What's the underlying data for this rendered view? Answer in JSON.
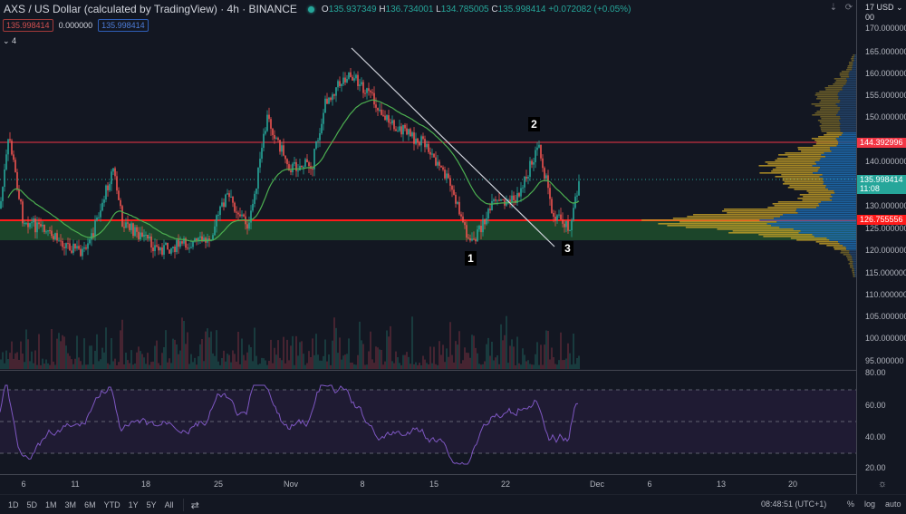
{
  "header": {
    "symbol_title": "AXS / US Dollar (calculated by TradingView) · 4h · BINANCE",
    "ohlc": {
      "o_label": "O",
      "o": "135.937349",
      "h_label": "H",
      "h": "136.734001",
      "l_label": "L",
      "l": "134.785005",
      "c_label": "C",
      "c": "135.998414",
      "change": "+0.072082 (+0.05%)"
    },
    "sell_price": "135.998414",
    "spread": "0.000000",
    "buy_price": "135.998414",
    "indicators_toggle": "⌄ 4",
    "status_color": "#26a69a"
  },
  "price_axis": {
    "currency_selector": "17 USD ⌄ 00",
    "labels": [
      "170.000000",
      "165.000000",
      "160.000000",
      "155.000000",
      "150.000000",
      "140.000000",
      "130.000000",
      "125.000000",
      "120.000000",
      "115.000000",
      "110.000000",
      "105.000000",
      "100.000000",
      "95.000000"
    ],
    "tags": {
      "resistance": "144.392996",
      "current": "135.998414",
      "countdown": "11:08",
      "support": "126.755556"
    },
    "rsi_labels": [
      "80.00",
      "60.00",
      "40.00",
      "20.00"
    ]
  },
  "time_axis": {
    "labels": [
      "6",
      "11",
      "18",
      "25",
      "Nov",
      "8",
      "15",
      "22",
      "Dec",
      "6",
      "13",
      "20"
    ]
  },
  "annotations": {
    "markers": [
      "1",
      "2",
      "3"
    ]
  },
  "bottom_bar": {
    "timeframes": [
      "1D",
      "5D",
      "1M",
      "3M",
      "6M",
      "YTD",
      "1Y",
      "5Y",
      "All"
    ],
    "clock": "08:48:51 (UTC+1)",
    "percent": "%",
    "log": "log",
    "auto": "auto"
  },
  "colors": {
    "background": "#131722",
    "up": "#26a69a",
    "down": "#ef5350",
    "ma": "#4caf50",
    "rsi": "#7e57c2",
    "resistance_line": "#f23645",
    "support_zone": "#1e4d2b",
    "vp_up": "#c9a227",
    "vp_down": "#2962ff"
  }
}
